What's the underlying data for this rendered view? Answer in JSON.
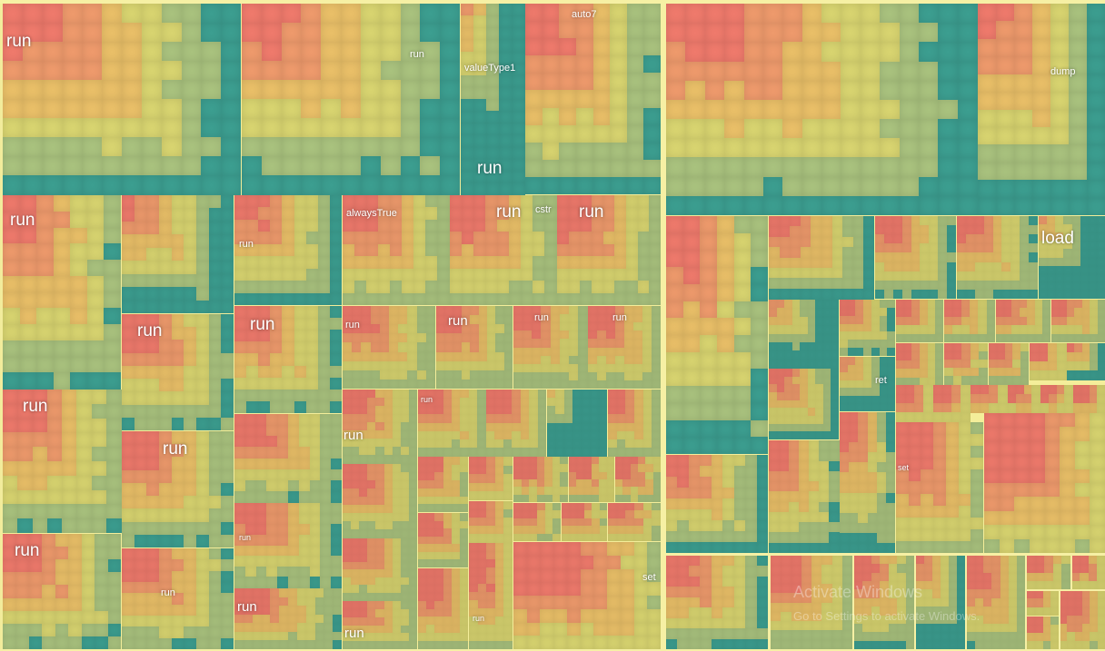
{
  "colors": {
    "background": "#f2ec9c",
    "frame": "#f6f0a4",
    "hot": "#ef7a6c",
    "warm": "#ee9a6c",
    "mid": "#e9bf68",
    "mild": "#d8d470",
    "cool_mild": "#a9c27e",
    "cool": "#3c9e90"
  },
  "labels": {
    "left": [
      "run",
      "run",
      "valueType1",
      "auto7",
      "run",
      "run",
      "alwaysTrue",
      "run",
      "cstr",
      "run",
      "run",
      "run",
      "run",
      "run",
      "run",
      "run",
      "run",
      "run",
      "run",
      "run",
      "run",
      "run",
      "run",
      "run",
      "run",
      "run",
      "run",
      "set",
      "run"
    ],
    "right": [
      "dump",
      "load",
      "ret",
      "set"
    ]
  },
  "watermark": {
    "line1": "Activate Windows",
    "line2": "Go to Settings to activate Windows."
  }
}
